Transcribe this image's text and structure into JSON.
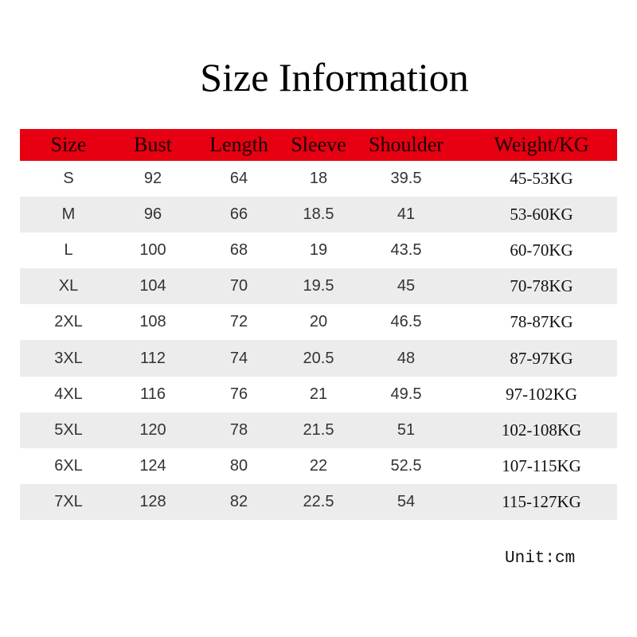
{
  "title": "Size Information",
  "colors": {
    "header_bg": "#e60012",
    "alt_row_bg": "#ececec"
  },
  "table": {
    "headers": [
      "Size",
      "Bust",
      "Length",
      "Sleeve",
      "Shoulder",
      "Weight/KG"
    ],
    "rows": [
      [
        "S",
        "92",
        "64",
        "18",
        "39.5",
        "45-53KG"
      ],
      [
        "M",
        "96",
        "66",
        "18.5",
        "41",
        "53-60KG"
      ],
      [
        "L",
        "100",
        "68",
        "19",
        "43.5",
        "60-70KG"
      ],
      [
        "XL",
        "104",
        "70",
        "19.5",
        "45",
        "70-78KG"
      ],
      [
        "2XL",
        "108",
        "72",
        "20",
        "46.5",
        "78-87KG"
      ],
      [
        "3XL",
        "112",
        "74",
        "20.5",
        "48",
        "87-97KG"
      ],
      [
        "4XL",
        "116",
        "76",
        "21",
        "49.5",
        "97-102KG"
      ],
      [
        "5XL",
        "120",
        "78",
        "21.5",
        "51",
        "102-108KG"
      ],
      [
        "6XL",
        "124",
        "80",
        "22",
        "52.5",
        "107-115KG"
      ],
      [
        "7XL",
        "128",
        "82",
        "22.5",
        "54",
        "115-127KG"
      ]
    ]
  },
  "unit": "Unit:cm"
}
